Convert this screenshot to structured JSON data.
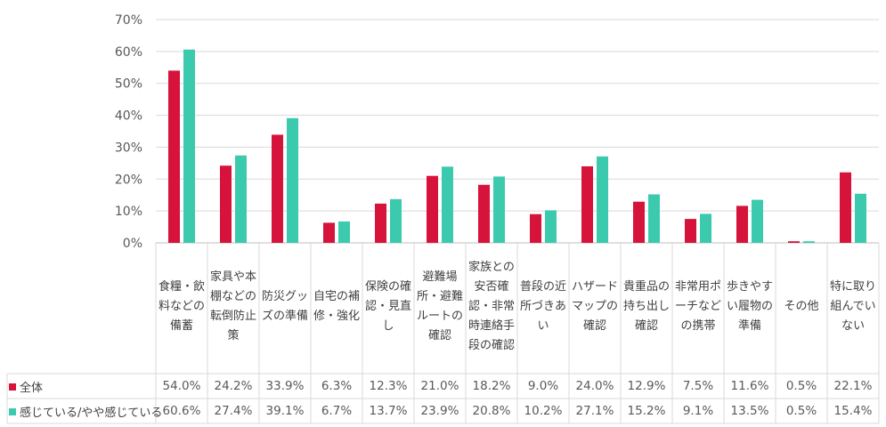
{
  "chart_data": {
    "type": "bar",
    "title": "",
    "xlabel": "",
    "ylabel": "",
    "ylim": [
      0,
      70
    ],
    "yticks": [
      "0%",
      "10%",
      "20%",
      "30%",
      "40%",
      "50%",
      "60%",
      "70%"
    ],
    "grid": true,
    "legend_position": "table-left",
    "categories": [
      "食糧・飲料などの備蓄",
      "家具や本棚などの転倒防止策",
      "防災グッズの準備",
      "自宅の補修・強化",
      "保険の確認・見直し",
      "避難場所・避難ルートの確認",
      "家族との安否確認・非常時連絡手段の確認",
      "普段の近所づきあい",
      "ハザードマップの確認",
      "貴重品の持ち出し確認",
      "非常用ポーチなどの携帯",
      "歩きやすい履物の準備",
      "その他",
      "特に取り組んでいない"
    ],
    "series": [
      {
        "name": "全体",
        "color": "#D6133A",
        "values": [
          54.0,
          24.2,
          33.9,
          6.3,
          12.3,
          21.0,
          18.2,
          9.0,
          24.0,
          12.9,
          7.5,
          11.6,
          0.5,
          22.1
        ],
        "labels": [
          "54.0%",
          "24.2%",
          "33.9%",
          "6.3%",
          "12.3%",
          "21.0%",
          "18.2%",
          "9.0%",
          "24.0%",
          "12.9%",
          "7.5%",
          "11.6%",
          "0.5%",
          "22.1%"
        ]
      },
      {
        "name": "感じている/やや感じている",
        "color": "#3CCAAE",
        "values": [
          60.6,
          27.4,
          39.1,
          6.7,
          13.7,
          23.9,
          20.8,
          10.2,
          27.1,
          15.2,
          9.1,
          13.5,
          0.5,
          15.4
        ],
        "labels": [
          "60.6%",
          "27.4%",
          "39.1%",
          "6.7%",
          "13.7%",
          "23.9%",
          "20.8%",
          "10.2%",
          "27.1%",
          "15.2%",
          "9.1%",
          "13.5%",
          "0.5%",
          "15.4%"
        ]
      }
    ]
  }
}
